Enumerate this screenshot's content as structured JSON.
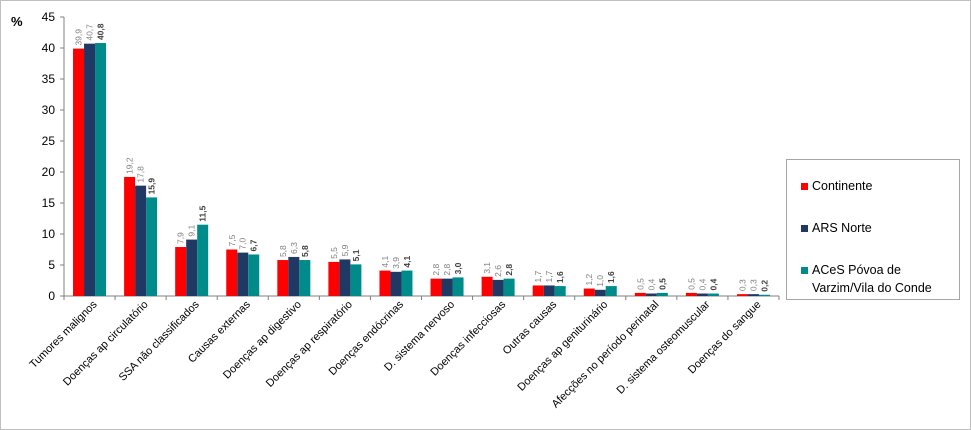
{
  "chart_data": {
    "type": "bar",
    "ylabel": "%",
    "ylim": [
      0,
      45
    ],
    "yticks": [
      "0",
      "5",
      "10",
      "15",
      "20",
      "25",
      "30",
      "35",
      "40",
      "45"
    ],
    "categories": [
      "Tumores malignos",
      "Doenças ap circulatório",
      "SSA não classificados",
      "Causas externas",
      "Doenças ap digestivo",
      "Doenças ap respiratório",
      "Doenças endócrinas",
      "D. sistema nervoso",
      "Doenças infecciosas",
      "Outras causas",
      "Doenças ap geniturinário",
      "Afecções no período perinatal",
      "D. sistema osteomuscular",
      "Doenças do sangue"
    ],
    "series": [
      {
        "name": "Continente",
        "color": "#ff0000",
        "values": [
          39.9,
          19.2,
          7.9,
          7.5,
          5.8,
          5.5,
          4.1,
          2.8,
          3.1,
          1.7,
          1.2,
          0.5,
          0.5,
          0.3
        ],
        "labels": [
          "39,9",
          "19,2",
          "7,9",
          "7,5",
          "5,8",
          "5,5",
          "4,1",
          "2,8",
          "3,1",
          "1,7",
          "1,2",
          "0,5",
          "0,5",
          "0,3"
        ]
      },
      {
        "name": "ARS Norte",
        "color": "#1f3864",
        "values": [
          40.7,
          17.8,
          9.1,
          7.0,
          6.3,
          5.9,
          3.9,
          2.8,
          2.6,
          1.7,
          1.0,
          0.4,
          0.4,
          0.3
        ],
        "labels": [
          "40,7",
          "17,8",
          "9,1",
          "7,0",
          "6,3",
          "5,9",
          "3,9",
          "2,8",
          "2,6",
          "1,7",
          "1,0",
          "0,4",
          "0,4",
          "0,3"
        ]
      },
      {
        "name": "ACeS Póvoa de\nVarzim/Vila do Conde",
        "color": "#008b8b",
        "values": [
          40.8,
          15.9,
          11.5,
          6.7,
          5.8,
          5.1,
          4.1,
          3.0,
          2.8,
          1.6,
          1.6,
          0.5,
          0.4,
          0.2
        ],
        "labels": [
          "40,8",
          "15,9",
          "11,5",
          "6,7",
          "5,8",
          "5,1",
          "4,1",
          "3,0",
          "2,8",
          "1,6",
          "1,6",
          "0,5",
          "0,4",
          "0,2"
        ]
      }
    ],
    "legend_position": "right",
    "grid": false
  }
}
